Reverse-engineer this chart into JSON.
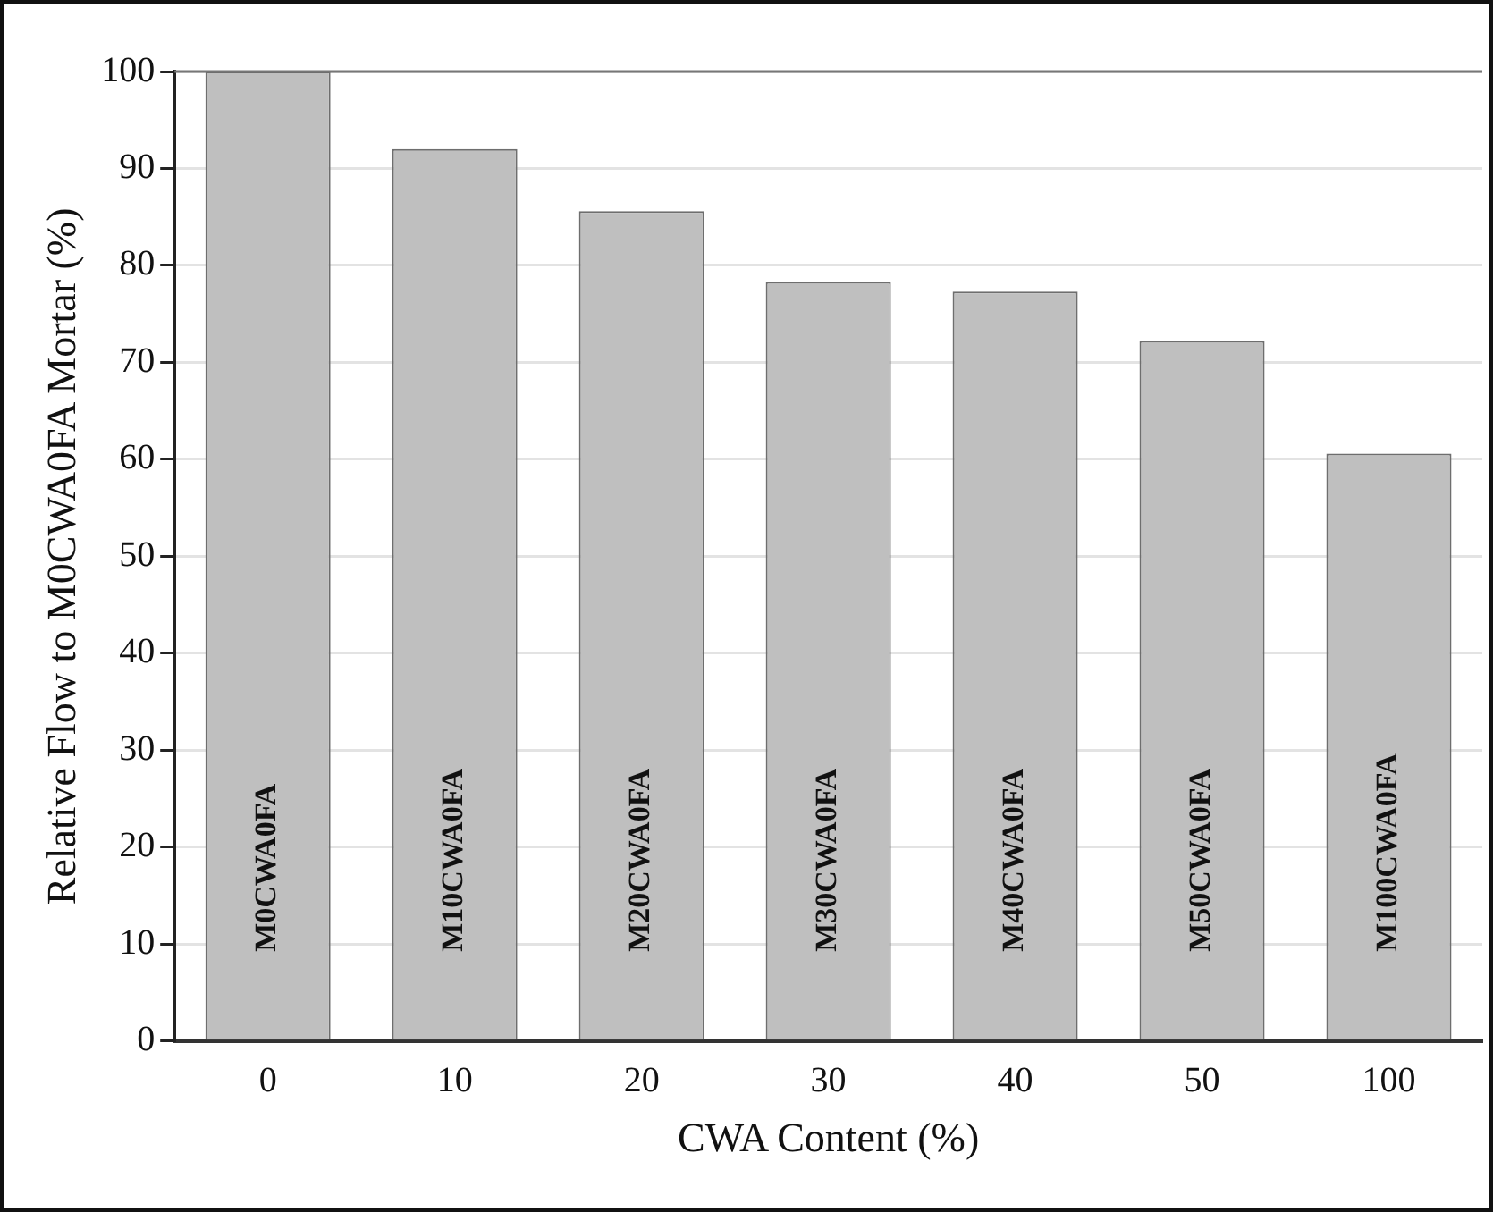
{
  "chart_data": {
    "type": "bar",
    "xlabel": "CWA Content (%)",
    "ylabel": "Relative Flow to M0CWA0FA Mortar (%)",
    "categories": [
      "0",
      "10",
      "20",
      "30",
      "40",
      "50",
      "100"
    ],
    "values": [
      100,
      92,
      85.6,
      78.3,
      77.3,
      72.2,
      60.6
    ],
    "color": "#bfbfbf",
    "ylim": [
      0,
      100
    ],
    "yticks": [
      0,
      10,
      20,
      30,
      40,
      50,
      60,
      70,
      80,
      90,
      100
    ],
    "grid": "y",
    "annotations": [
      "M0CWA0FA",
      "M10CWA0FA",
      "M20CWA0FA",
      "M30CWA0FA",
      "M40CWA0FA",
      "M50CWA0FA",
      "M100CWA0FA"
    ]
  }
}
